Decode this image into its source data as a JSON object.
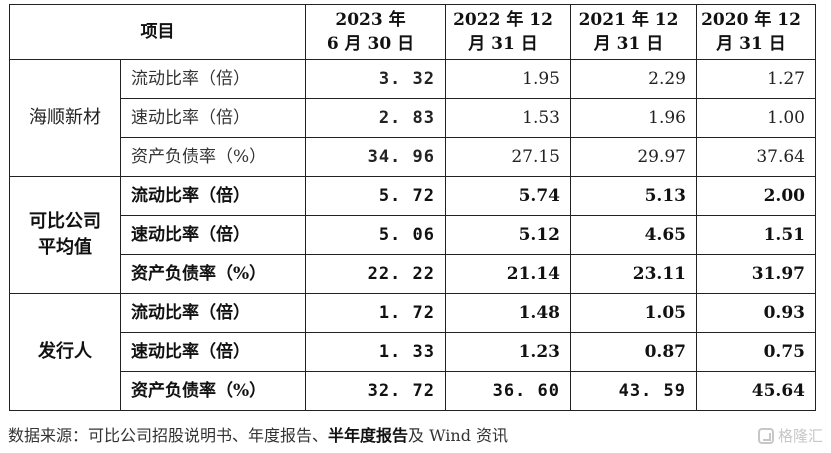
{
  "table": {
    "header": {
      "item": "项目",
      "periods": [
        {
          "line1": "2023 年",
          "line2": "6 月 30 日"
        },
        {
          "line1": "2022 年 12",
          "line2": "月 31 日"
        },
        {
          "line1": "2021 年 12",
          "line2": "月 31 日"
        },
        {
          "line1": "2020 年 12",
          "line2": "月 31 日"
        }
      ]
    },
    "groups": [
      {
        "name_lines": [
          "海顺新材"
        ],
        "rows": [
          {
            "metric": "流动比率（倍）",
            "values": [
              "3. 32",
              "1.95",
              "2.29",
              "1.27"
            ]
          },
          {
            "metric": "速动比率（倍）",
            "values": [
              "2. 83",
              "1.53",
              "1.96",
              "1.00"
            ]
          },
          {
            "metric": "资产负债率（%）",
            "values": [
              "34. 96",
              "27.15",
              "29.97",
              "37.64"
            ]
          }
        ]
      },
      {
        "name_lines": [
          "可比公司",
          "平均值"
        ],
        "rows": [
          {
            "metric": "流动比率（倍）",
            "values": [
              "5. 72",
              "5.74",
              "5.13",
              "2.00"
            ]
          },
          {
            "metric": "速动比率（倍）",
            "values": [
              "5. 06",
              "5.12",
              "4.65",
              "1.51"
            ]
          },
          {
            "metric": "资产负债率（%）",
            "values": [
              "22. 22",
              "21.14",
              "23.11",
              "31.97"
            ]
          }
        ]
      },
      {
        "name_lines": [
          "发行人"
        ],
        "rows": [
          {
            "metric": "流动比率（倍）",
            "values": [
              "1. 72",
              "1.48",
              "1.05",
              "0.93"
            ]
          },
          {
            "metric": "速动比率（倍）",
            "values": [
              "1. 33",
              "1.23",
              "0.87",
              "0.75"
            ]
          },
          {
            "metric": "资产负债率（%）",
            "values": [
              "32. 72",
              "36. 60",
              "43. 59",
              "45.64"
            ]
          }
        ]
      }
    ]
  },
  "source": {
    "prefix": "数据来源：可比公司招股说明书、年度报告、",
    "emphasis": "半年度报告",
    "suffix": "及 Wind 资讯"
  },
  "watermark": {
    "text": "格隆汇",
    "icon": "gelonghui-logo-icon"
  }
}
